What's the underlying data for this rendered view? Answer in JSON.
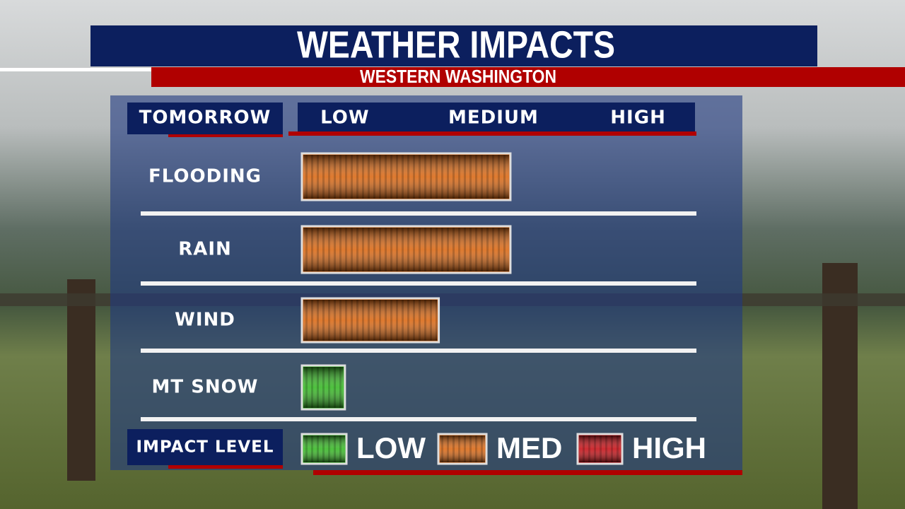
{
  "chart_data": {
    "type": "bar",
    "orientation": "horizontal",
    "title": "WEATHER IMPACTS",
    "subtitle": "WESTERN WASHINGTON",
    "y_label": "TOMORROW",
    "categories": [
      "FLOODING",
      "RAIN",
      "WIND",
      "MT SNOW"
    ],
    "values": [
      1.6,
      1.6,
      1.05,
      0.33
    ],
    "colors": [
      "#d9620a",
      "#d9620a",
      "#d9620a",
      "#2fb51c"
    ],
    "xlim": [
      0,
      3
    ],
    "xticks": [
      {
        "value": 0.33,
        "label": "LOW"
      },
      {
        "value": 1.47,
        "label": "MEDIUM"
      },
      {
        "value": 2.58,
        "label": "HIGH"
      }
    ],
    "legend_title": "IMPACT LEVEL",
    "legend": [
      {
        "label": "LOW",
        "color": "#2fb51c"
      },
      {
        "label": "MED",
        "color": "#d9620a"
      },
      {
        "label": "HIGH",
        "color": "#c4070d"
      }
    ]
  }
}
